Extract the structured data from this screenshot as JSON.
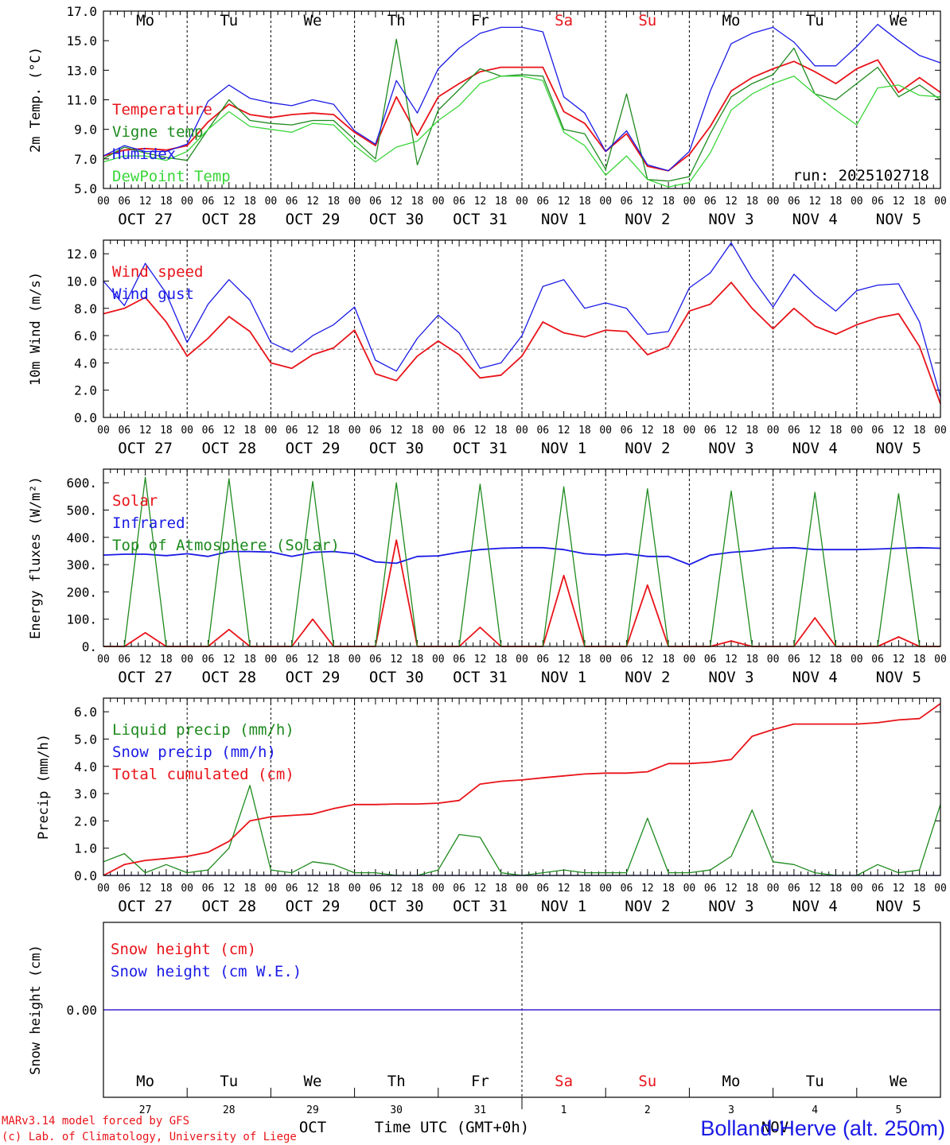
{
  "colors": {
    "red": "#e8141a",
    "blue": "#1a1ae6",
    "dgreen": "#1e8a1e",
    "lgreen": "#3ad63a",
    "sat": "#e8141a",
    "grey": "#999999"
  },
  "days": [
    {
      "name": "Mo",
      "color": "black"
    },
    {
      "name": "Tu",
      "color": "black"
    },
    {
      "name": "We",
      "color": "black"
    },
    {
      "name": "Th",
      "color": "black"
    },
    {
      "name": "Fr",
      "color": "black"
    },
    {
      "name": "Sa",
      "color": "red"
    },
    {
      "name": "Su",
      "color": "red"
    },
    {
      "name": "Mo",
      "color": "black"
    },
    {
      "name": "Tu",
      "color": "black"
    },
    {
      "name": "We",
      "color": "black"
    }
  ],
  "dates": [
    "OCT 27",
    "OCT 28",
    "OCT 29",
    "OCT 30",
    "OCT 31",
    "NOV  1",
    "NOV  2",
    "NOV  3",
    "NOV  4",
    "NOV  5"
  ],
  "hour_labels": [
    "00",
    "06",
    "12",
    "18"
  ],
  "end_hour_label": "00",
  "bottom_dates": [
    "27",
    "28",
    "29",
    "30",
    "31",
    "1",
    "2",
    "3",
    "4",
    "5"
  ],
  "month_labels": {
    "oct": "OCT",
    "nov": "NOV"
  },
  "run_label": "run: 2025102718",
  "xaxis_label": "Time UTC (GMT+0h)",
  "footer": {
    "line1": "MARv3.14 model forced by GFS",
    "line2": "(c) Lab. of Climatology, University of Liege",
    "station": "Bolland-Herve (alt. 250m)"
  },
  "chart_data": [
    {
      "id": "temp",
      "type": "line",
      "ylabel": "2m Temp. (°C)",
      "ylim": [
        5,
        17
      ],
      "yticks": [
        "5.0",
        "7.0",
        "9.0",
        "11.0",
        "13.0",
        "15.0",
        "17.0"
      ],
      "x_hours": [
        0,
        6,
        12,
        18,
        24,
        30,
        36,
        42,
        48,
        54,
        60,
        66,
        72,
        78,
        84,
        90,
        96,
        102,
        108,
        114,
        120,
        126,
        132,
        138,
        144,
        150,
        156,
        162,
        168,
        174,
        180,
        186,
        192,
        198,
        204,
        210,
        216,
        222,
        228,
        234,
        240
      ],
      "series": [
        {
          "name": "Temperature",
          "color": "red",
          "values": [
            7.2,
            7.6,
            7.7,
            7.6,
            7.9,
            9.5,
            10.7,
            10.0,
            9.8,
            10.0,
            10.1,
            10.0,
            8.8,
            7.9,
            11.2,
            8.6,
            11.2,
            12.1,
            12.9,
            13.2,
            13.2,
            13.2,
            10.2,
            9.4,
            7.5,
            8.7,
            6.5,
            6.2,
            7.3,
            9.2,
            11.6,
            12.5,
            13.1,
            13.6,
            12.9,
            12.1,
            13.1,
            13.7,
            11.5,
            12.5,
            11.5
          ]
        },
        {
          "name": "Vigne temp",
          "color": "dgreen",
          "values": [
            7.0,
            7.8,
            7.4,
            7.1,
            6.9,
            9.0,
            11.0,
            9.6,
            9.4,
            9.3,
            9.6,
            9.6,
            8.3,
            7.0,
            15.1,
            6.6,
            10.3,
            11.7,
            13.1,
            12.6,
            12.7,
            12.6,
            9.0,
            8.7,
            6.3,
            11.4,
            5.6,
            5.5,
            5.8,
            8.7,
            11.2,
            12.1,
            12.7,
            14.5,
            11.4,
            11.0,
            12.1,
            13.2,
            11.2,
            12.0,
            11.0
          ]
        },
        {
          "name": "Humidex",
          "color": "blue",
          "values": [
            7.2,
            7.9,
            7.5,
            7.5,
            8.0,
            10.9,
            12.0,
            11.1,
            10.8,
            10.6,
            11.0,
            10.7,
            8.9,
            8.0,
            12.3,
            10.1,
            13.1,
            14.5,
            15.5,
            15.9,
            15.9,
            15.6,
            11.2,
            10.1,
            7.5,
            8.9,
            6.6,
            6.2,
            7.5,
            11.6,
            14.8,
            15.5,
            15.9,
            14.9,
            13.3,
            13.3,
            14.6,
            16.1,
            15.0,
            14.0,
            13.5
          ]
        },
        {
          "name": "DewPoint Temp",
          "color": "lgreen",
          "values": [
            6.8,
            7.2,
            7.2,
            6.9,
            7.5,
            9.0,
            10.2,
            9.2,
            9.0,
            8.8,
            9.4,
            9.3,
            7.9,
            6.8,
            7.8,
            8.2,
            9.6,
            10.6,
            12.1,
            12.6,
            12.6,
            12.3,
            8.8,
            7.9,
            5.9,
            7.2,
            5.6,
            5.1,
            5.4,
            7.4,
            10.3,
            11.4,
            12.1,
            12.6,
            11.4,
            10.3,
            9.3,
            11.8,
            12.0,
            11.3,
            11.2
          ]
        }
      ]
    },
    {
      "id": "wind",
      "type": "line",
      "ylabel": "10m Wind (m/s)",
      "ylim": [
        0,
        13
      ],
      "ref_line": 5,
      "yticks": [
        "0.0",
        "2.0",
        "4.0",
        "6.0",
        "8.0",
        "10.0",
        "12.0"
      ],
      "x_hours": [
        0,
        6,
        12,
        18,
        24,
        30,
        36,
        42,
        48,
        54,
        60,
        66,
        72,
        78,
        84,
        90,
        96,
        102,
        108,
        114,
        120,
        126,
        132,
        138,
        144,
        150,
        156,
        162,
        168,
        174,
        180,
        186,
        192,
        198,
        204,
        210,
        216,
        222,
        228,
        234,
        240
      ],
      "series": [
        {
          "name": "Wind speed",
          "color": "red",
          "values": [
            7.6,
            8.0,
            8.8,
            7.0,
            4.5,
            5.8,
            7.4,
            6.3,
            4.0,
            3.6,
            4.6,
            5.1,
            6.4,
            3.2,
            2.7,
            4.5,
            5.6,
            4.6,
            2.9,
            3.1,
            4.5,
            7.0,
            6.2,
            5.9,
            6.4,
            6.3,
            4.6,
            5.2,
            7.8,
            8.3,
            9.9,
            8.0,
            6.5,
            8.0,
            6.7,
            6.1,
            6.8,
            7.3,
            7.6,
            5.2,
            1.0
          ]
        },
        {
          "name": "Wind gust",
          "color": "blue",
          "values": [
            10.0,
            8.2,
            11.3,
            9.1,
            5.5,
            8.3,
            10.1,
            8.6,
            5.5,
            4.8,
            6.0,
            6.8,
            8.1,
            4.2,
            3.4,
            5.8,
            7.5,
            6.2,
            3.6,
            4.0,
            6.0,
            9.6,
            10.1,
            8.0,
            8.4,
            8.0,
            6.1,
            6.3,
            9.5,
            10.6,
            12.8,
            10.2,
            8.1,
            10.5,
            9.0,
            7.8,
            9.3,
            9.7,
            9.8,
            7.0,
            1.5
          ]
        }
      ]
    },
    {
      "id": "flux",
      "type": "line",
      "ylabel": "Energy fluxes (W/m²)",
      "ylim": [
        0,
        650
      ],
      "yticks": [
        "0.",
        "100.",
        "200.",
        "300.",
        "400.",
        "500.",
        "600."
      ],
      "x_hours": [
        0,
        6,
        12,
        18,
        24,
        30,
        36,
        42,
        48,
        54,
        60,
        66,
        72,
        78,
        84,
        90,
        96,
        102,
        108,
        114,
        120,
        126,
        132,
        138,
        144,
        150,
        156,
        162,
        168,
        174,
        180,
        186,
        192,
        198,
        204,
        210,
        216,
        222,
        228,
        234,
        240
      ],
      "series": [
        {
          "name": "Solar",
          "color": "red",
          "values": [
            0,
            0,
            50,
            0,
            0,
            0,
            62,
            0,
            0,
            0,
            100,
            0,
            0,
            0,
            390,
            0,
            0,
            0,
            70,
            0,
            0,
            0,
            260,
            0,
            0,
            0,
            225,
            0,
            0,
            0,
            20,
            0,
            0,
            0,
            105,
            0,
            0,
            0,
            35,
            0,
            0
          ]
        },
        {
          "name": "Infrared",
          "color": "blue",
          "values": [
            335,
            338,
            338,
            333,
            340,
            330,
            348,
            348,
            346,
            330,
            345,
            348,
            340,
            310,
            305,
            330,
            332,
            345,
            355,
            360,
            362,
            362,
            355,
            340,
            335,
            340,
            330,
            330,
            300,
            335,
            345,
            350,
            360,
            362,
            355,
            355,
            355,
            357,
            360,
            362,
            360
          ]
        },
        {
          "name": "Top of Atmosphere (Solar)",
          "color": "dgreen",
          "values": [
            0,
            0,
            620,
            0,
            0,
            0,
            615,
            0,
            0,
            0,
            605,
            0,
            0,
            0,
            600,
            0,
            0,
            0,
            595,
            0,
            0,
            0,
            585,
            0,
            0,
            0,
            578,
            0,
            0,
            0,
            570,
            0,
            0,
            0,
            565,
            0,
            0,
            0,
            560,
            0,
            0
          ]
        }
      ]
    },
    {
      "id": "precip",
      "type": "line",
      "ylabel": "Precip (mm/h)",
      "ylim": [
        0,
        6.5
      ],
      "yticks": [
        "0.0",
        "1.0",
        "2.0",
        "3.0",
        "4.0",
        "5.0",
        "6.0"
      ],
      "x_hours": [
        0,
        6,
        12,
        18,
        24,
        30,
        36,
        42,
        48,
        54,
        60,
        66,
        72,
        78,
        84,
        90,
        96,
        102,
        108,
        114,
        120,
        126,
        132,
        138,
        144,
        150,
        156,
        162,
        168,
        174,
        180,
        186,
        192,
        198,
        204,
        210,
        216,
        222,
        228,
        234,
        240
      ],
      "series": [
        {
          "name": "Liquid precip (mm/h)",
          "color": "dgreen",
          "values": [
            0.5,
            0.8,
            0.1,
            0.4,
            0.1,
            0.2,
            1.0,
            3.3,
            0.2,
            0.1,
            0.5,
            0.4,
            0.1,
            0.1,
            0.0,
            0.0,
            0.2,
            1.5,
            1.4,
            0.1,
            0.0,
            0.1,
            0.2,
            0.1,
            0.1,
            0.1,
            2.1,
            0.1,
            0.1,
            0.2,
            0.7,
            2.4,
            0.5,
            0.4,
            0.1,
            0.0,
            0.0,
            0.4,
            0.1,
            0.2,
            2.6
          ]
        },
        {
          "name": "Snow precip (mm/h)",
          "color": "blue",
          "values": [
            0,
            0,
            0,
            0,
            0,
            0,
            0,
            0,
            0,
            0,
            0,
            0,
            0,
            0,
            0,
            0,
            0,
            0,
            0,
            0,
            0,
            0,
            0,
            0,
            0,
            0,
            0,
            0,
            0,
            0,
            0,
            0,
            0,
            0,
            0,
            0,
            0,
            0,
            0,
            0,
            0
          ]
        },
        {
          "name": "Total cumulated (cm)",
          "color": "red",
          "values": [
            0.0,
            0.4,
            0.55,
            0.62,
            0.7,
            0.85,
            1.25,
            2.0,
            2.15,
            2.2,
            2.25,
            2.45,
            2.6,
            2.6,
            2.62,
            2.62,
            2.65,
            2.75,
            3.35,
            3.45,
            3.5,
            3.58,
            3.65,
            3.72,
            3.75,
            3.75,
            3.8,
            4.1,
            4.1,
            4.15,
            4.25,
            5.1,
            5.35,
            5.55,
            5.55,
            5.55,
            5.55,
            5.6,
            5.7,
            5.75,
            6.3
          ]
        }
      ]
    },
    {
      "id": "snow",
      "type": "line",
      "ylabel": "Snow height (cm)",
      "ylim": [
        -1,
        1
      ],
      "yticks": [
        "0.00"
      ],
      "x_hours": [
        0,
        240
      ],
      "series": [
        {
          "name": "Snow height (cm)",
          "color": "red",
          "values": [
            0,
            0
          ]
        },
        {
          "name": "Snow height (cm W.E.)",
          "color": "blue",
          "values": [
            0,
            0
          ]
        }
      ]
    }
  ]
}
